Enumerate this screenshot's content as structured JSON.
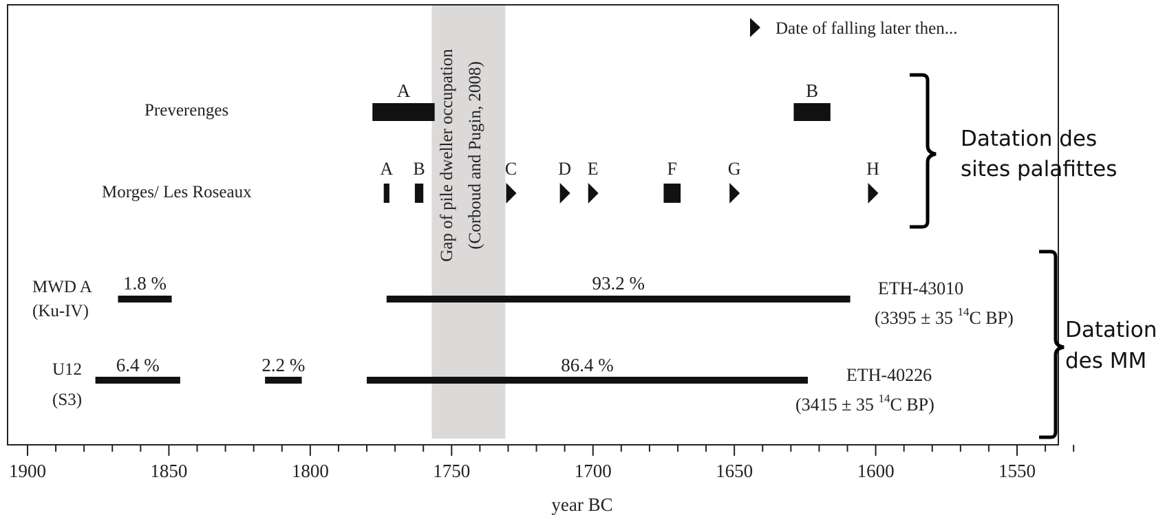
{
  "chart_data": {
    "type": "timeline",
    "xlabel": "year BC",
    "xlim": [
      1905,
      1528
    ],
    "x_ticks_major": [
      1900,
      1850,
      1800,
      1750,
      1700,
      1650,
      1600,
      1550
    ],
    "x_tick_labels": [
      "1900",
      "1850",
      "1800",
      "1750",
      "1700",
      "1650",
      "1600",
      "1550"
    ],
    "minor_tick_step": 10,
    "gap_band": {
      "from": 1757,
      "to": 1731,
      "line1": "Gap of pile dweller occupation",
      "line2": "(Corboud and Pugin, 2008)",
      "color": "#dcd9d9"
    },
    "legend": {
      "symbol": "triangle-right",
      "text": "Date of falling later then...",
      "position": "top-right"
    },
    "rows": [
      {
        "label": "Preverenges",
        "items": [
          {
            "kind": "bar",
            "label": "A",
            "from": 1778,
            "to": 1756
          },
          {
            "kind": "bar",
            "label": "B",
            "from": 1629,
            "to": 1616
          }
        ]
      },
      {
        "label": "Morges/ Les Roseaux",
        "items": [
          {
            "kind": "bar",
            "label": "A",
            "from": 1774,
            "to": 1772
          },
          {
            "kind": "bar",
            "label": "B",
            "from": 1763,
            "to": 1760
          },
          {
            "kind": "marker",
            "label": "C",
            "x": 1729
          },
          {
            "kind": "marker",
            "label": "D",
            "x": 1710
          },
          {
            "kind": "marker",
            "label": "E",
            "x": 1700
          },
          {
            "kind": "bar",
            "label": "F",
            "from": 1675,
            "to": 1669
          },
          {
            "kind": "marker",
            "label": "G",
            "x": 1650
          },
          {
            "kind": "marker",
            "label": "H",
            "x": 1601
          }
        ]
      },
      {
        "label_line1": "MWD A",
        "label_line2": "(Ku-IV)",
        "lab_code": "ETH-43010",
        "age_prefix": "(3395 ± 35 ",
        "age_sup": "14",
        "age_suffix": "C BP)",
        "ranges": [
          {
            "from": 1868,
            "to": 1849,
            "percent": "1.8 %"
          },
          {
            "from": 1773,
            "to": 1609,
            "percent": "93.2 %"
          }
        ]
      },
      {
        "label_line1": "U12",
        "label_line2": "(S3)",
        "lab_code": "ETH-40226",
        "age_prefix": "(3415 ± 35 ",
        "age_sup": "14",
        "age_suffix": "C BP)",
        "ranges": [
          {
            "from": 1876,
            "to": 1846,
            "percent": "6.4 %"
          },
          {
            "from": 1816,
            "to": 1803,
            "percent": "2.2 %"
          },
          {
            "from": 1780,
            "to": 1624,
            "percent": "86.4 %"
          }
        ]
      }
    ],
    "bracket_labels": [
      {
        "line1": "Datation des",
        "line2": "sites palafittes"
      },
      {
        "line1": "Datation",
        "line2": "des MM"
      }
    ]
  }
}
